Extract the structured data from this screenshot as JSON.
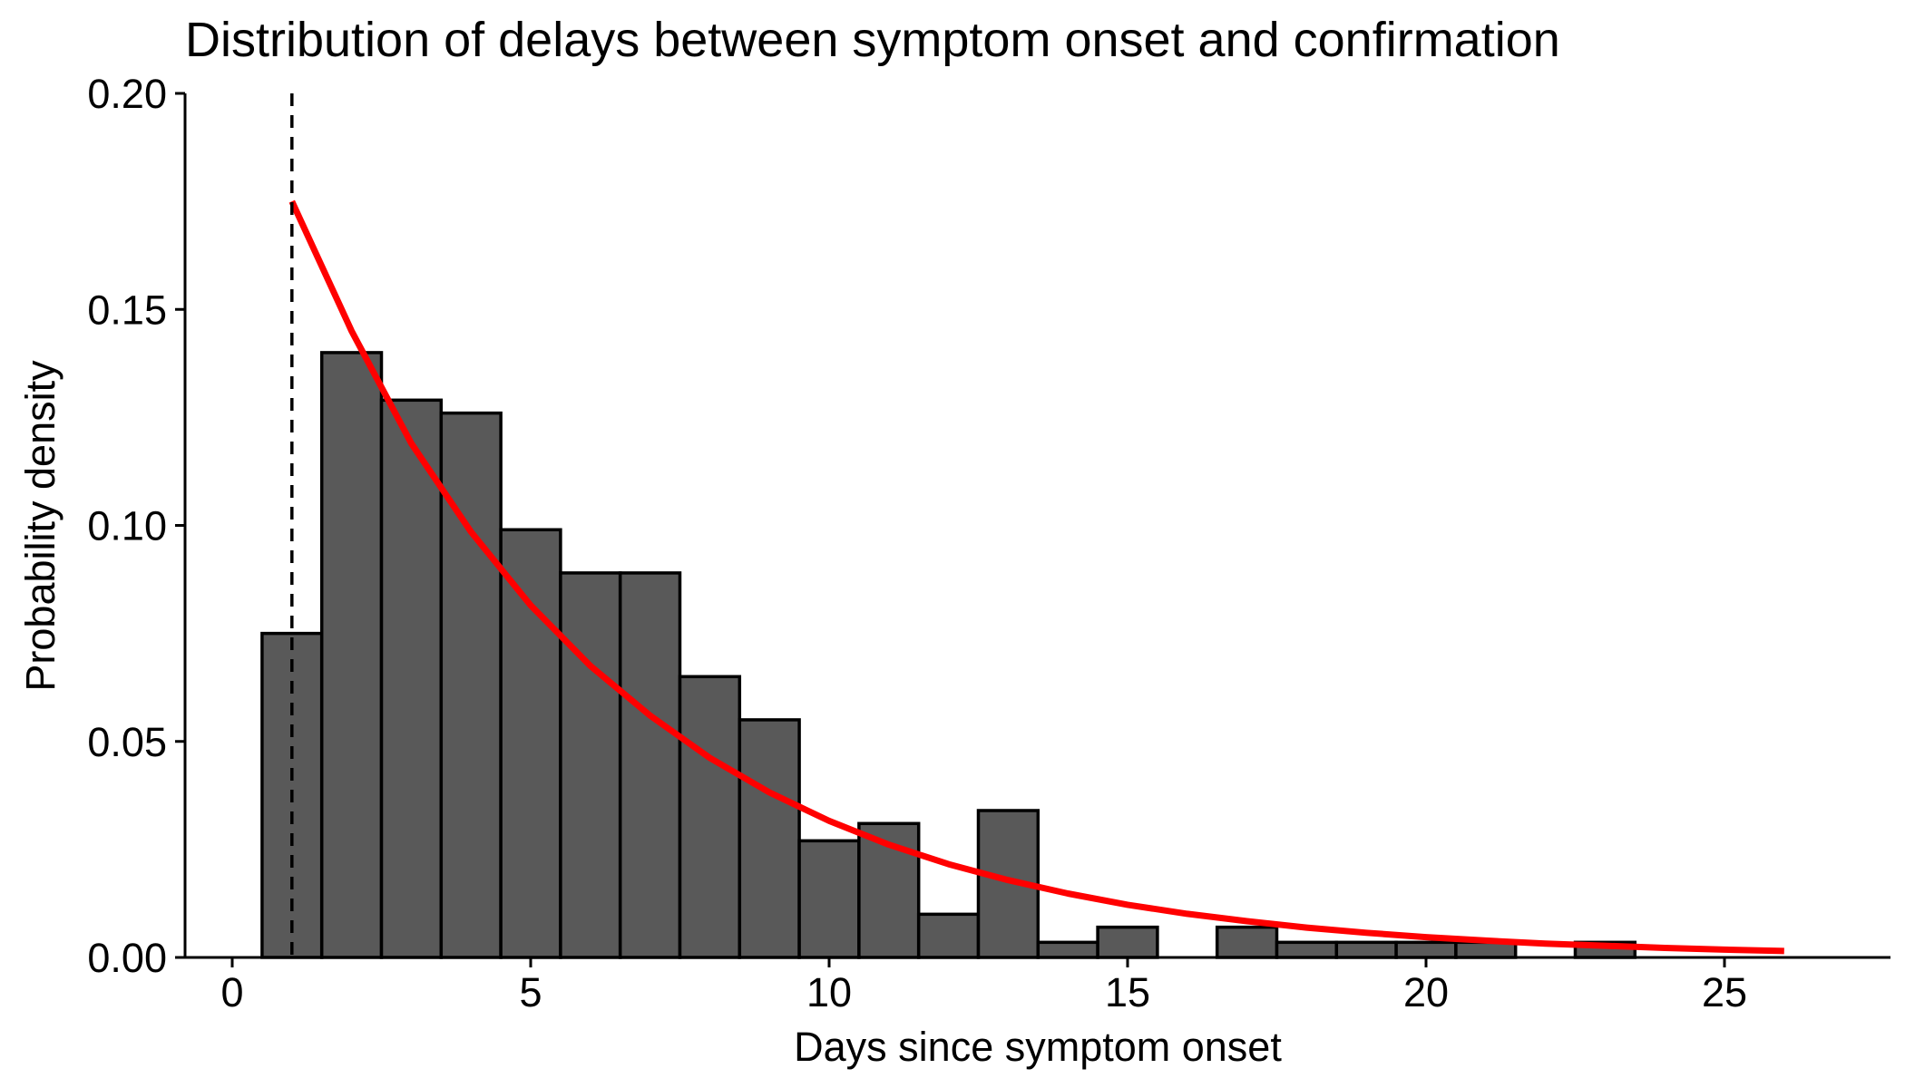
{
  "chart_data": {
    "type": "bar",
    "title": "Distribution of delays between symptom onset and confirmation",
    "xlabel": "Days since symptom onset",
    "ylabel": "Probability density",
    "xlim": [
      -1,
      28
    ],
    "ylim": [
      0,
      0.2
    ],
    "xticks": [
      0,
      5,
      10,
      15,
      20,
      25
    ],
    "xtick_labels": [
      "0",
      "5",
      "10",
      "15",
      "20",
      "25"
    ],
    "yticks": [
      0,
      0.05,
      0.1,
      0.15,
      0.2
    ],
    "ytick_labels": [
      "0.00",
      "0.05",
      "0.10",
      "0.15",
      "0.20"
    ],
    "bin_width": 1,
    "bins": [
      {
        "center": 1,
        "density": 0.075
      },
      {
        "center": 2,
        "density": 0.14
      },
      {
        "center": 3,
        "density": 0.129
      },
      {
        "center": 4,
        "density": 0.126
      },
      {
        "center": 5,
        "density": 0.099
      },
      {
        "center": 6,
        "density": 0.089
      },
      {
        "center": 7,
        "density": 0.089
      },
      {
        "center": 8,
        "density": 0.065
      },
      {
        "center": 9,
        "density": 0.055
      },
      {
        "center": 10,
        "density": 0.027
      },
      {
        "center": 11,
        "density": 0.031
      },
      {
        "center": 12,
        "density": 0.01
      },
      {
        "center": 13,
        "density": 0.034
      },
      {
        "center": 14,
        "density": 0.0035
      },
      {
        "center": 15,
        "density": 0.007
      },
      {
        "center": 16,
        "density": 0
      },
      {
        "center": 17,
        "density": 0.007
      },
      {
        "center": 18,
        "density": 0.0035
      },
      {
        "center": 19,
        "density": 0.0035
      },
      {
        "center": 20,
        "density": 0.0035
      },
      {
        "center": 21,
        "density": 0.0035
      },
      {
        "center": 22,
        "density": 0
      },
      {
        "center": 23,
        "density": 0.0035
      }
    ],
    "fitted_curve": {
      "x": [
        1,
        2,
        3,
        4,
        5,
        6,
        7,
        8,
        9,
        10,
        11,
        12,
        13,
        14,
        15,
        16,
        17,
        18,
        19,
        20,
        21,
        22,
        23,
        24,
        25,
        26
      ],
      "y": [
        0.175,
        0.145,
        0.119,
        0.0985,
        0.0815,
        0.0675,
        0.056,
        0.0462,
        0.0382,
        0.0316,
        0.0261,
        0.0216,
        0.0179,
        0.0148,
        0.0122,
        0.0101,
        0.0084,
        0.0069,
        0.0057,
        0.0047,
        0.0039,
        0.0032,
        0.0027,
        0.0022,
        0.0018,
        0.0015
      ]
    },
    "reference_line_x": 1,
    "colors": {
      "bar_fill": "#595959",
      "bar_edge": "#000000",
      "curve": "#ff0000",
      "reference_line": "#000000"
    }
  }
}
